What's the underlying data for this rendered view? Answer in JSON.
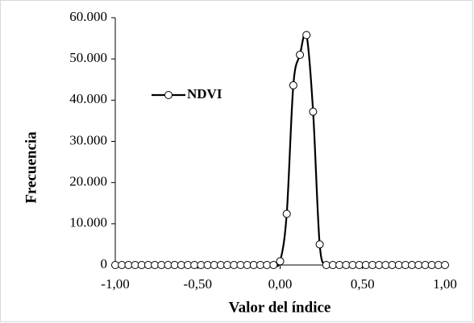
{
  "chart_data": {
    "type": "line",
    "x_label": "Valor del índice",
    "y_label": "Frecuencia",
    "x": [
      -1,
      -0.96,
      -0.92,
      -0.88,
      -0.84,
      -0.8,
      -0.76,
      -0.72,
      -0.68,
      -0.64,
      -0.6,
      -0.56,
      -0.52,
      -0.48,
      -0.44,
      -0.4,
      -0.36,
      -0.32,
      -0.28,
      -0.24,
      -0.2,
      -0.16,
      -0.12,
      -0.08,
      -0.04,
      0,
      0.04,
      0.08,
      0.12,
      0.16,
      0.2,
      0.24,
      0.28,
      0.32,
      0.36,
      0.4,
      0.44,
      0.48,
      0.52,
      0.56,
      0.6,
      0.64,
      0.68,
      0.72,
      0.76,
      0.8,
      0.84,
      0.88,
      0.92,
      0.96,
      1
    ],
    "series": [
      {
        "name": "NDVI",
        "color": "#000000",
        "values": [
          0,
          0,
          0,
          0,
          0,
          0,
          0,
          0,
          0,
          0,
          0,
          0,
          0,
          0,
          0,
          0,
          0,
          0,
          0,
          0,
          0,
          0,
          0,
          0,
          0,
          900,
          12400,
          43600,
          51000,
          55800,
          37200,
          5000,
          0,
          0,
          0,
          0,
          0,
          0,
          0,
          0,
          0,
          0,
          0,
          0,
          0,
          0,
          0,
          0,
          0,
          0,
          0
        ]
      }
    ],
    "xlim": [
      -1,
      1
    ],
    "xticks": [
      {
        "value": -1,
        "label": "-1,00"
      },
      {
        "value": -0.5,
        "label": "-0,50"
      },
      {
        "value": 0,
        "label": "0,00"
      },
      {
        "value": 0.5,
        "label": "0,50"
      },
      {
        "value": 1,
        "label": "1,00"
      }
    ],
    "ylim": [
      0,
      60000
    ],
    "yticks": [
      0,
      {
        "value": 10000,
        "label": "10.000"
      },
      {
        "value": 20000,
        "label": "20.000"
      },
      {
        "value": 30000,
        "label": "30.000"
      },
      {
        "value": 40000,
        "label": "40.000"
      },
      {
        "value": 50000,
        "label": "50.000"
      },
      {
        "value": 60000,
        "label": "60.000"
      }
    ],
    "grid": false,
    "legend": "upper left"
  }
}
